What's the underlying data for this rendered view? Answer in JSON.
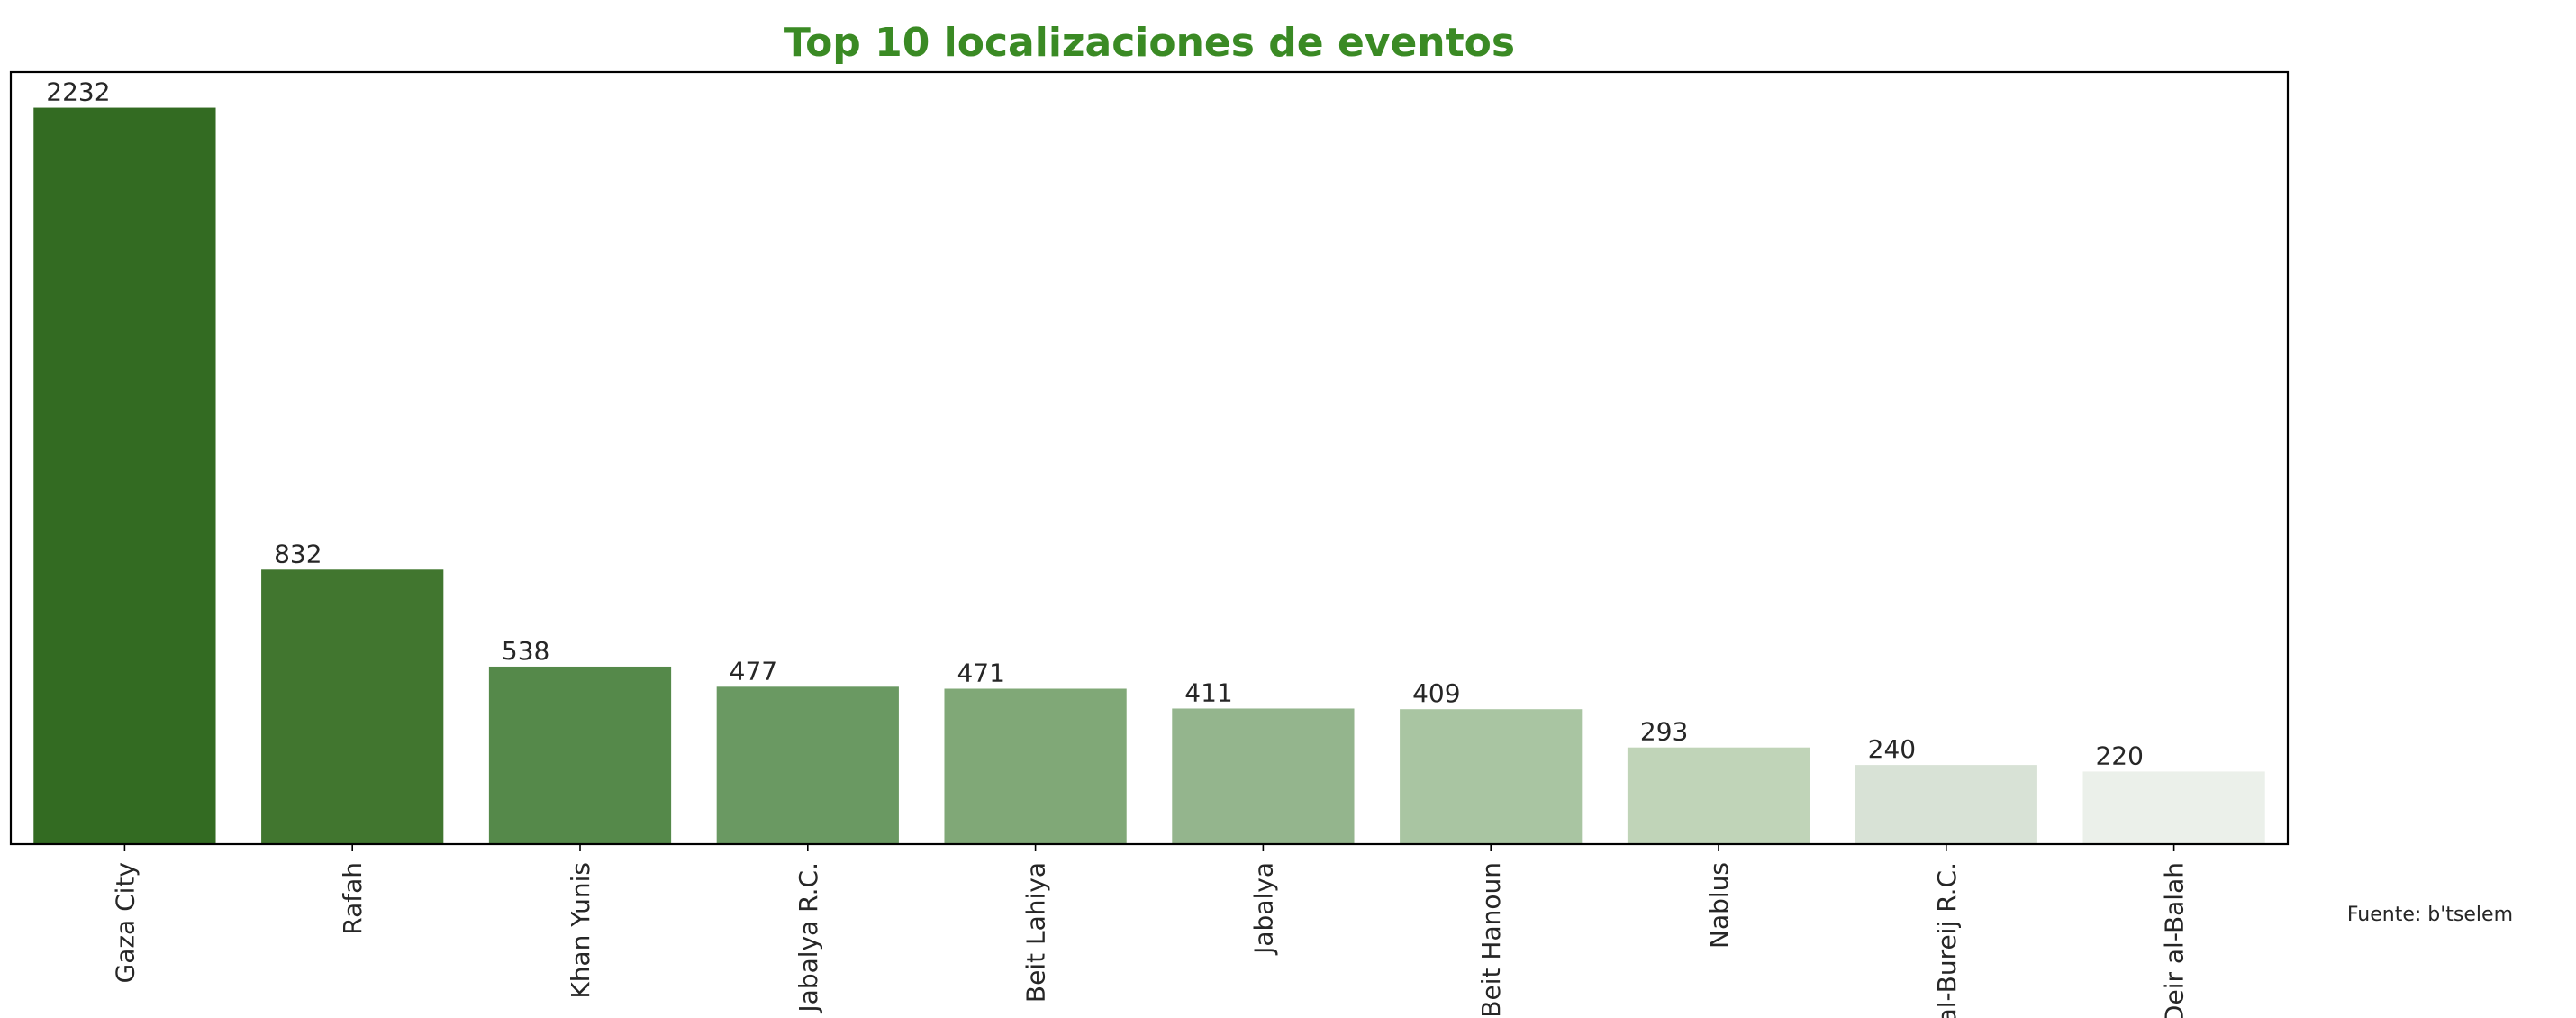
{
  "chart_data": {
    "type": "bar",
    "title": "Top 10 localizaciones de eventos",
    "xlabel": "",
    "ylabel": "",
    "categories": [
      "Gaza City",
      "Rafah",
      "Khan Yunis",
      "Jabalya R.C.",
      "Beit Lahiya",
      "Jabalya",
      "Beit Hanoun",
      "Nablus",
      "al-Bureij R.C.",
      "Deir al-Balah"
    ],
    "values": [
      2232,
      832,
      538,
      477,
      471,
      411,
      409,
      293,
      240,
      220
    ],
    "bar_colors": [
      "#336b22",
      "#41762f",
      "#55894a",
      "#6a9962",
      "#80a877",
      "#94b58d",
      "#a9c5a2",
      "#c0d4b8",
      "#d8e2d6",
      "#ebf0ea"
    ],
    "title_color": "#3a8a24",
    "ylim": [
      0,
      2340
    ],
    "y_ticks_shown": false,
    "grid": false,
    "source_note": "Fuente: b'tselem"
  }
}
